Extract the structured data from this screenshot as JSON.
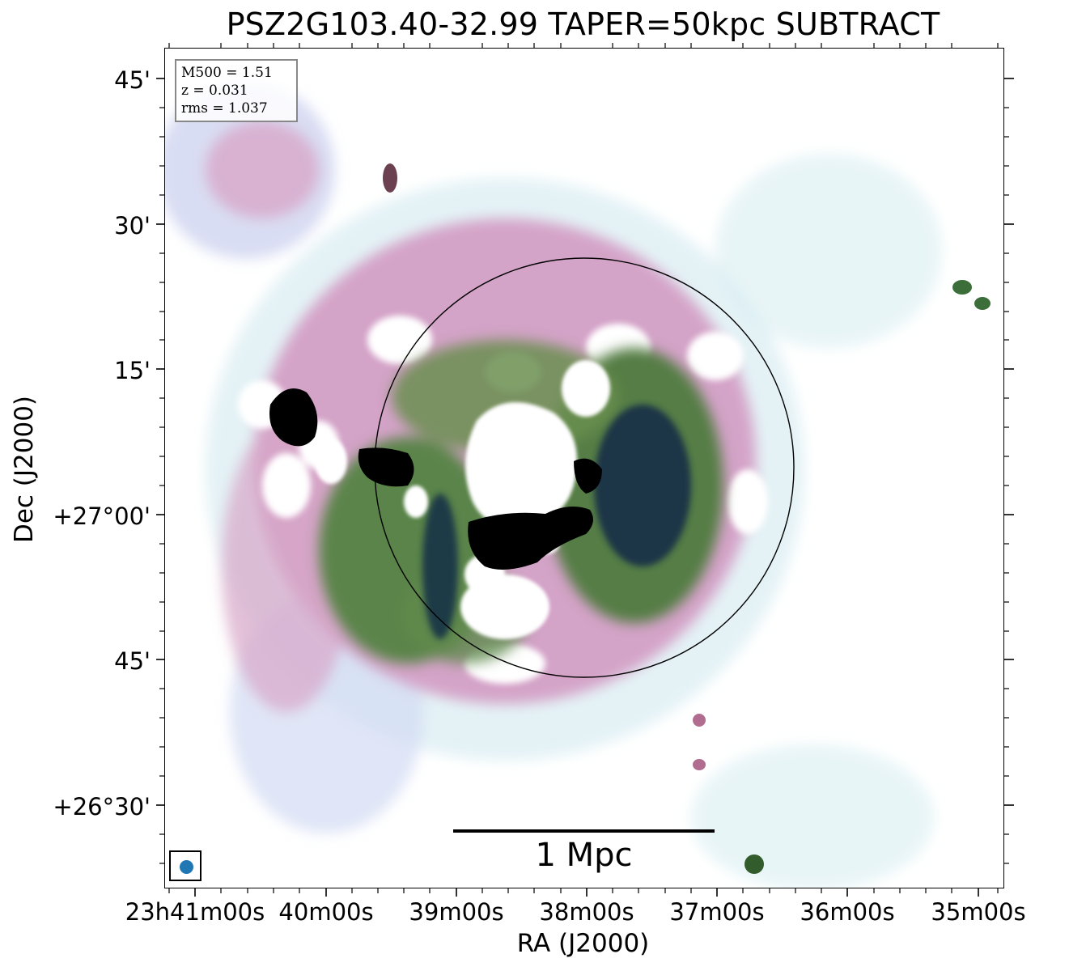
{
  "title": "PSZ2G103.40-32.99 TAPER=50kpc SUBTRACT",
  "info": {
    "line1": "M500 = 1.51",
    "line2": "z = 0.031",
    "line3": "rms = 1.037"
  },
  "axes": {
    "xlabel": "RA (J2000)",
    "ylabel": "Dec (J2000)",
    "xticks": [
      "23h41m00s",
      "40m00s",
      "39m00s",
      "38m00s",
      "37m00s",
      "36m00s",
      "35m00s"
    ],
    "yticks": [
      "45'",
      "30'",
      "15'",
      "+27°00'",
      "45'",
      "+26°30'"
    ]
  },
  "scalebar": {
    "label": "1 Mpc"
  },
  "colors": {
    "beam": "#1f77b4",
    "circle": "#000000",
    "emission_low": "#cde8ef",
    "emission_mid": "#c58fb8",
    "emission_high": "#3f7a3a",
    "emission_peak": "#000000"
  }
}
